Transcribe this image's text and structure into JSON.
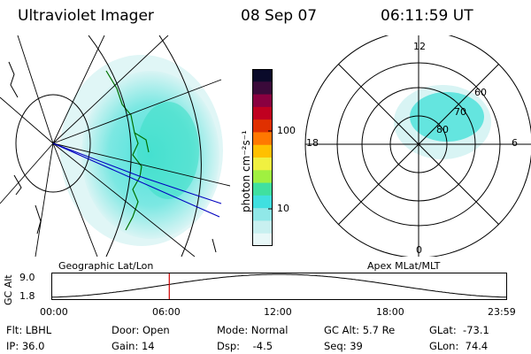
{
  "header": {
    "instrument": "Ultraviolet Imager",
    "date": "08 Sep 07",
    "time": "06:11:59 UT"
  },
  "colorbar": {
    "label": "photon cm⁻²s⁻¹",
    "ticks": [
      {
        "label": "100",
        "value": 100
      },
      {
        "label": "10",
        "value": 10
      }
    ],
    "colors": [
      "#0a0a2a",
      "#3a0a3a",
      "#8a0040",
      "#c00020",
      "#e03000",
      "#ff7800",
      "#ffc000",
      "#f0f040",
      "#a0f040",
      "#40e0a0",
      "#40e0e0",
      "#90e8e8",
      "#c8f0f0",
      "#e8f8f8"
    ]
  },
  "polar_plot": {
    "mlt_labels": {
      "top": "12",
      "bottom": "0",
      "left": "18",
      "right": "6"
    },
    "mlat_labels": [
      "60",
      "70",
      "80"
    ]
  },
  "projection_labels": {
    "left": "Geographic Lat/Lon",
    "right": "Apex MLat/MLT"
  },
  "altitude_plot": {
    "axis_label": "GC Alt",
    "y_ticks": [
      "9.0",
      "1.8"
    ],
    "x_ticks": [
      "00:00",
      "06:00",
      "12:00",
      "18:00",
      "23:59"
    ],
    "current_time_marker_hours": 6.2,
    "marker_color": "#d00000"
  },
  "info": {
    "flt": "Flt: LBHL",
    "ip": "IP: 36.0",
    "door": "Door: Open",
    "gain": "Gain: 14",
    "mode": "Mode: Normal",
    "dsp": "Dsp:    -4.5",
    "gc_alt": "GC Alt: 5.7 Re",
    "seq": "Seq: 39",
    "glat": "GLat:  -73.1",
    "glon": "GLon:  74.4"
  },
  "colors": {
    "aurora_main": "#40e0d8",
    "aurora_light": "#b0eef0",
    "coast": "#007000",
    "track": "#0000c0"
  }
}
